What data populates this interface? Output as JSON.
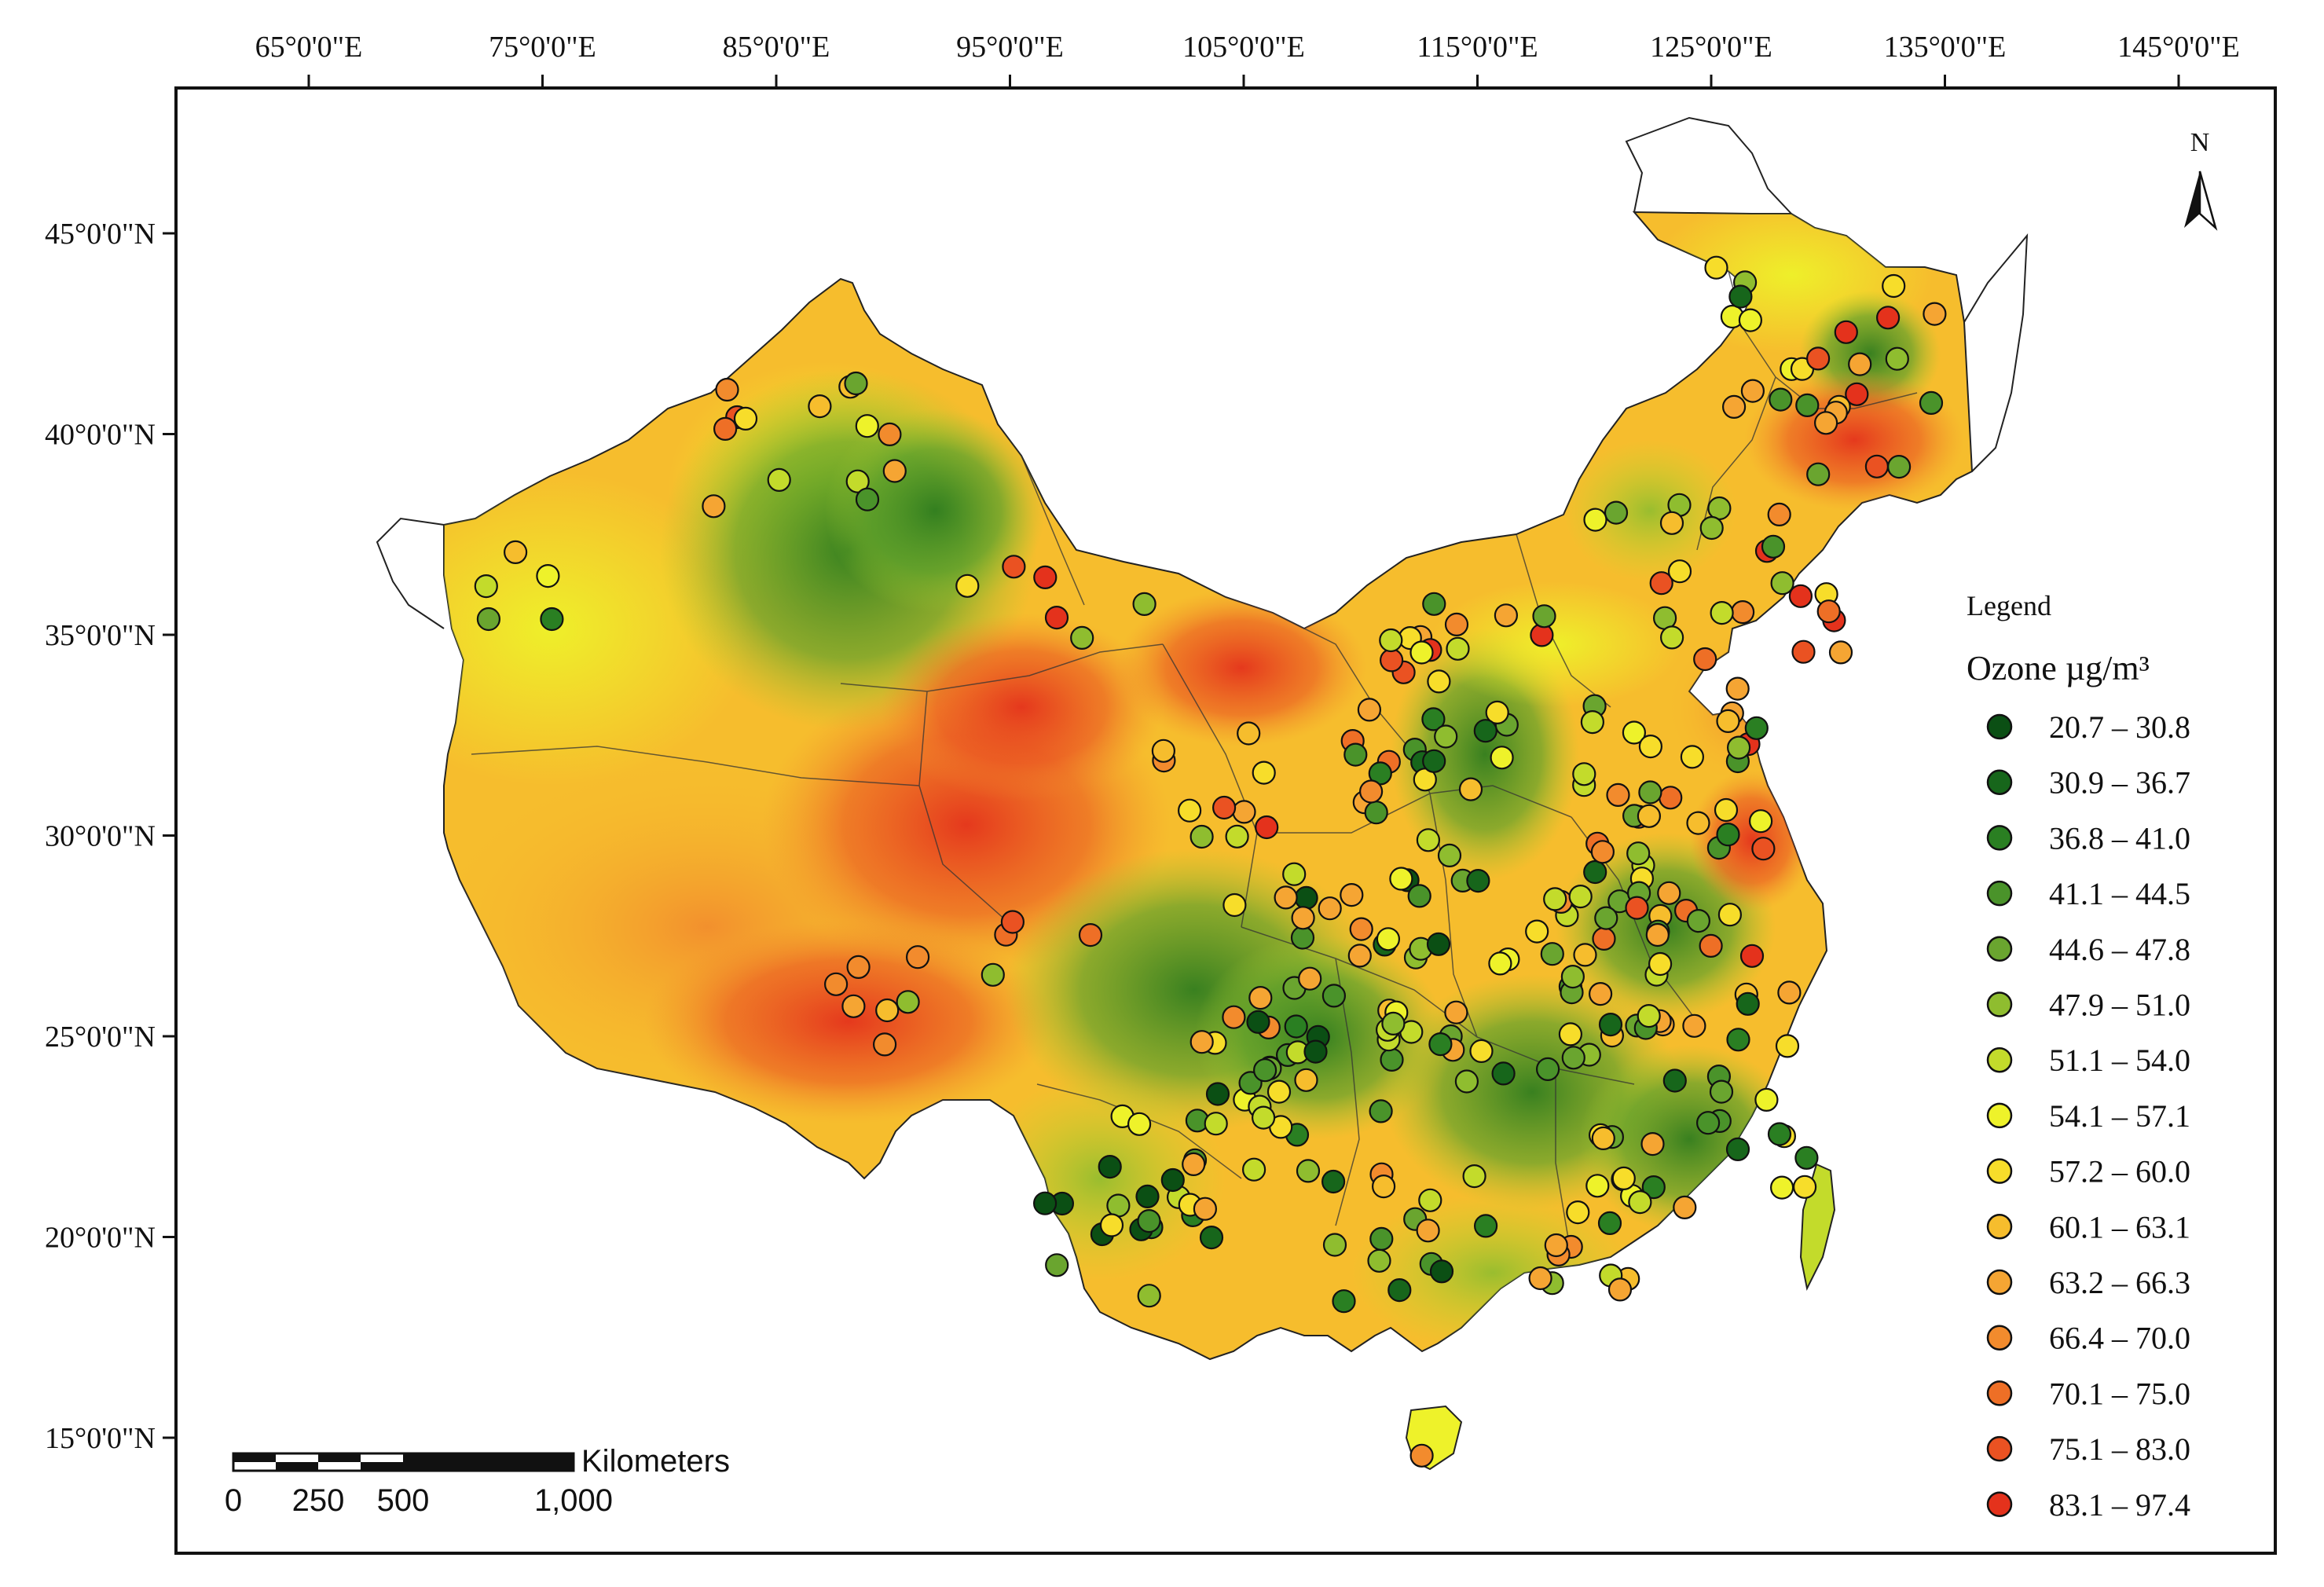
{
  "map": {
    "lon_labels": [
      "65°0'0\"E",
      "75°0'0\"E",
      "85°0'0\"E",
      "95°0'0\"E",
      "105°0'0\"E",
      "115°0'0\"E",
      "125°0'0\"E",
      "135°0'0\"E",
      "145°0'0\"E"
    ],
    "lat_labels": [
      "45°0'0\"N",
      "40°0'0\"N",
      "35°0'0\"N",
      "30°0'0\"N",
      "25°0'0\"N",
      "20°0'0\"N",
      "15°0'0\"N"
    ],
    "north_arrow_label": "N"
  },
  "legend": {
    "heading": "Legend",
    "variable_label": "Ozone  µg/m³",
    "classes": [
      {
        "range": "20.7 – 30.8",
        "color": "#0b4f14"
      },
      {
        "range": "30.9 – 36.7",
        "color": "#17661b"
      },
      {
        "range": "36.8 – 41.0",
        "color": "#2a7f22"
      },
      {
        "range": "41.1 – 44.5",
        "color": "#4a932a"
      },
      {
        "range": "44.6 – 47.8",
        "color": "#6aa52f"
      },
      {
        "range": "47.9 – 51.0",
        "color": "#8fbd2f"
      },
      {
        "range": "51.1 – 54.0",
        "color": "#c3db2b"
      },
      {
        "range": "54.1 – 57.1",
        "color": "#eef22a"
      },
      {
        "range": "57.2 – 60.0",
        "color": "#f7dd2a"
      },
      {
        "range": "60.1 – 63.1",
        "color": "#f6bd2d"
      },
      {
        "range": "63.2 – 66.3",
        "color": "#f5a533"
      },
      {
        "range": "66.4 – 70.0",
        "color": "#f28b2d"
      },
      {
        "range": "70.1 – 75.0",
        "color": "#ee6f26"
      },
      {
        "range": "75.1 – 83.0",
        "color": "#ea5222"
      },
      {
        "range": "83.1 – 97.4",
        "color": "#e4321c"
      }
    ]
  },
  "scale_bar": {
    "unit": "Kilometers",
    "labels": [
      "0",
      "250",
      "500",
      "1,000"
    ]
  }
}
